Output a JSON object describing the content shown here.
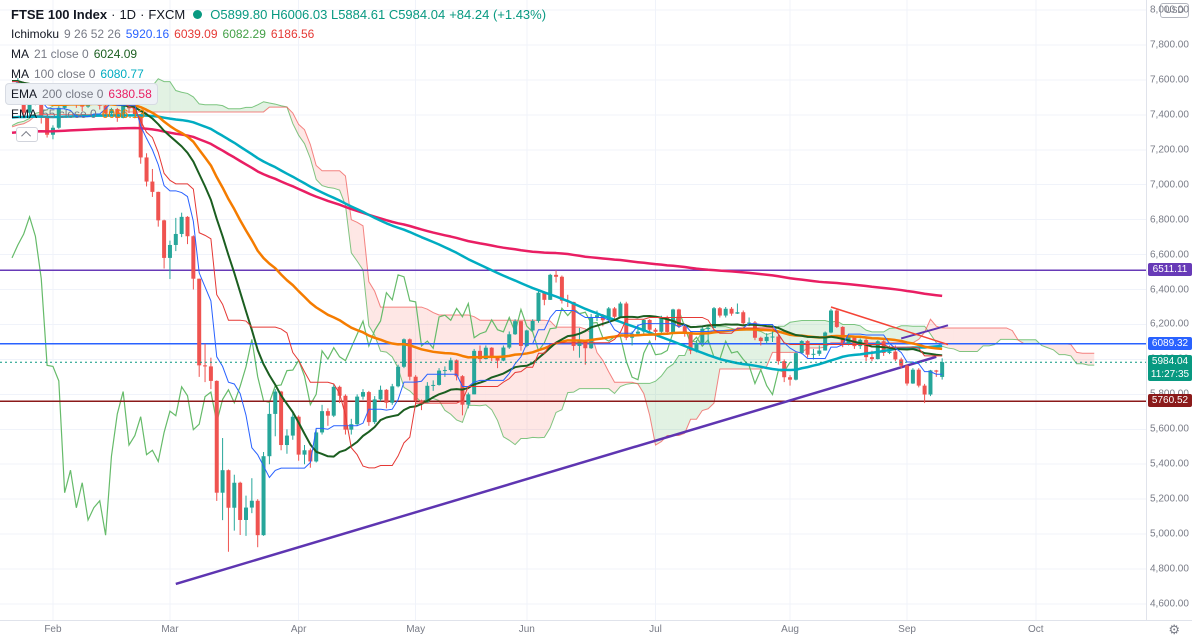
{
  "header": {
    "symbol": "FTSE 100 Index",
    "sep": "·",
    "interval": "1D",
    "exchange": "FXCM",
    "ohlc": [
      {
        "l": "O",
        "v": "5899.80"
      },
      {
        "l": "H",
        "v": "6006.03"
      },
      {
        "l": "L",
        "v": "5884.61"
      },
      {
        "l": "C",
        "v": "5984.04"
      }
    ],
    "change": "+84.24 (+1.43%)",
    "ohlc_color": "#089981",
    "indicators": [
      {
        "id": "ichimoku",
        "name": "Ichimoku",
        "params": "9 26 52 26",
        "selected": false,
        "values": [
          {
            "t": "5920.16",
            "c": "#2962ff"
          },
          {
            "t": "6039.09",
            "c": "#e53935"
          },
          {
            "t": "6082.29",
            "c": "#43a047"
          },
          {
            "t": "6186.56",
            "c": "#e53935"
          }
        ]
      },
      {
        "id": "ma-21",
        "name": "MA",
        "params": "21 close 0",
        "selected": false,
        "values": [
          {
            "t": "6024.09",
            "c": "#1b5e20"
          }
        ]
      },
      {
        "id": "ma-100",
        "name": "MA",
        "params": "100 close 0",
        "selected": false,
        "values": [
          {
            "t": "6080.77",
            "c": "#00acc1"
          }
        ]
      },
      {
        "id": "ema-200",
        "name": "EMA",
        "params": "200 close 0",
        "selected": true,
        "values": [
          {
            "t": "6380.58",
            "c": "#e91e63"
          }
        ]
      },
      {
        "id": "ema-55",
        "name": "EMA",
        "params": "55 close 0",
        "selected": false,
        "values": [
          {
            "t": "6066.13",
            "c": "#f57c00"
          }
        ]
      }
    ]
  },
  "axis": {
    "currency": "USD"
  },
  "icons": {
    "gear": "⚙"
  },
  "chart_data": {
    "type": "candlestick",
    "title": "FTSE 100 Index",
    "interval": "1D",
    "source": "FXCM",
    "price_axis": {
      "min": 4600,
      "max": 8000,
      "step": 200
    },
    "months": [
      {
        "label": "Feb",
        "i": 7
      },
      {
        "label": "Mar",
        "i": 27
      },
      {
        "label": "Apr",
        "i": 49
      },
      {
        "label": "May",
        "i": 69
      },
      {
        "label": "Jun",
        "i": 88
      },
      {
        "label": "Jul",
        "i": 110
      },
      {
        "label": "Aug",
        "i": 133
      },
      {
        "label": "Sep",
        "i": 153
      },
      {
        "label": "Oct",
        "i": 175
      }
    ],
    "levels": [
      {
        "value": 6511.11,
        "color": "#673ab7"
      },
      {
        "value": 6089.32,
        "color": "#2962ff"
      },
      {
        "value": 5760.52,
        "color": "#8b1a1a"
      }
    ],
    "last": {
      "price": 5984.04,
      "countdown": "11:27:35"
    },
    "trendlines": [
      {
        "i1": 28,
        "p1": 4715,
        "i2": 158,
        "p2": 6015,
        "color": "#5e35b1",
        "width": 2.5
      },
      {
        "i1": 152,
        "p1": 6120,
        "i2": 160,
        "p2": 6195,
        "color": "#5e35b1",
        "width": 2
      },
      {
        "i1": 140,
        "p1": 6300,
        "i2": 160,
        "p2": 6085,
        "color": "#f44336",
        "width": 1.5
      }
    ],
    "style": {
      "up": "#26a69a",
      "down": "#ef5350",
      "tenkan": "#2962ff",
      "kijun": "#e53935",
      "senkouA": "#4caf50",
      "senkouB": "#ef5350",
      "cloudUp": "rgba(76,175,80,0.16)",
      "cloudDown": "rgba(244,67,54,0.13)",
      "chikou": "#66bb6a",
      "ma21": "#1b5e20",
      "ma100": "#00acc1",
      "ema55": "#f57c00",
      "ema200": "#e91e63",
      "grid": "#f0f3fa"
    },
    "seed_closes": [
      7155,
      7143,
      7197,
      7178,
      7158,
      7212,
      7186,
      7167,
      7213,
      7247,
      7211,
      7181,
      7204,
      7260,
      7235,
      7213,
      7248,
      7306,
      7331,
      7324,
      7295,
      7328,
      7369,
      7388,
      7403,
      7396,
      7406,
      7359,
      7329,
      7365,
      7292,
      7316,
      7262,
      7303,
      7328,
      7351,
      7326,
      7307,
      7356,
      7403,
      7416,
      7429,
      7286,
      7188,
      7158,
      7239,
      7240,
      7233,
      7213,
      7216,
      7273,
      7353,
      7519,
      7525,
      7540,
      7574,
      7632,
      7645,
      7587,
      7622,
      7604,
      7542,
      7574,
      7604,
      7598,
      7573,
      7588,
      7617,
      7610,
      7587,
      7622,
      7675,
      7651,
      7612,
      7571,
      7585,
      7558,
      7572
    ],
    "candles": [
      [
        7572,
        7580,
        7480,
        7508
      ],
      [
        7508,
        7610,
        7500,
        7586
      ],
      [
        7586,
        7590,
        7390,
        7412
      ],
      [
        7412,
        7490,
        7390,
        7481
      ],
      [
        7481,
        7510,
        7455,
        7483
      ],
      [
        7483,
        7490,
        7350,
        7382
      ],
      [
        7382,
        7400,
        7270,
        7286
      ],
      [
        7286,
        7340,
        7260,
        7326
      ],
      [
        7326,
        7450,
        7320,
        7440
      ],
      [
        7440,
        7500,
        7430,
        7482
      ],
      [
        7482,
        7520,
        7460,
        7505
      ],
      [
        7505,
        7510,
        7440,
        7467
      ],
      [
        7467,
        7480,
        7420,
        7447
      ],
      [
        7447,
        7510,
        7440,
        7499
      ],
      [
        7499,
        7550,
        7490,
        7534
      ],
      [
        7534,
        7540,
        7430,
        7452
      ],
      [
        7452,
        7470,
        7390,
        7409
      ],
      [
        7409,
        7440,
        7400,
        7433
      ],
      [
        7433,
        7440,
        7360,
        7382
      ],
      [
        7382,
        7460,
        7380,
        7457
      ],
      [
        7457,
        7470,
        7410,
        7437
      ],
      [
        7437,
        7450,
        7380,
        7404
      ],
      [
        7404,
        7404,
        7120,
        7156
      ],
      [
        7156,
        7180,
        6990,
        7018
      ],
      [
        7018,
        7090,
        6930,
        6959
      ],
      [
        6959,
        6960,
        6760,
        6796
      ],
      [
        6796,
        6800,
        6520,
        6581
      ],
      [
        6581,
        6680,
        6460,
        6655
      ],
      [
        6655,
        6810,
        6620,
        6718
      ],
      [
        6718,
        6840,
        6700,
        6816
      ],
      [
        6816,
        6820,
        6660,
        6705
      ],
      [
        6705,
        6710,
        6400,
        6462
      ],
      [
        6462,
        6462,
        5900,
        5966
      ],
      [
        5966,
        6090,
        5870,
        5960
      ],
      [
        5960,
        6010,
        5830,
        5877
      ],
      [
        5877,
        5880,
        5190,
        5237
      ],
      [
        5237,
        5550,
        5080,
        5366
      ],
      [
        5366,
        5370,
        4899,
        5151
      ],
      [
        5151,
        5340,
        5020,
        5294
      ],
      [
        5294,
        5300,
        4995,
        5081
      ],
      [
        5081,
        5220,
        4990,
        5152
      ],
      [
        5152,
        5320,
        5120,
        5191
      ],
      [
        5191,
        5200,
        4925,
        4994
      ],
      [
        4994,
        5470,
        4990,
        5446
      ],
      [
        5446,
        5750,
        5400,
        5688
      ],
      [
        5688,
        5830,
        5560,
        5816
      ],
      [
        5816,
        5820,
        5480,
        5510
      ],
      [
        5510,
        5600,
        5460,
        5564
      ],
      [
        5564,
        5700,
        5540,
        5672
      ],
      [
        5672,
        5680,
        5420,
        5455
      ],
      [
        5455,
        5510,
        5400,
        5480
      ],
      [
        5480,
        5490,
        5380,
        5416
      ],
      [
        5416,
        5600,
        5410,
        5582
      ],
      [
        5582,
        5740,
        5570,
        5704
      ],
      [
        5704,
        5720,
        5620,
        5678
      ],
      [
        5678,
        5860,
        5670,
        5843
      ],
      [
        5843,
        5850,
        5750,
        5792
      ],
      [
        5792,
        5800,
        5570,
        5598
      ],
      [
        5598,
        5660,
        5570,
        5629
      ],
      [
        5629,
        5800,
        5620,
        5787
      ],
      [
        5787,
        5830,
        5770,
        5813
      ],
      [
        5813,
        5820,
        5620,
        5641
      ],
      [
        5641,
        5790,
        5630,
        5771
      ],
      [
        5771,
        5850,
        5760,
        5826
      ],
      [
        5826,
        5830,
        5720,
        5752
      ],
      [
        5752,
        5860,
        5740,
        5846
      ],
      [
        5846,
        5970,
        5840,
        5958
      ],
      [
        5958,
        6120,
        5950,
        6115
      ],
      [
        6115,
        6120,
        5880,
        5901
      ],
      [
        5901,
        5910,
        5740,
        5763
      ],
      [
        5763,
        5770,
        5710,
        5754
      ],
      [
        5754,
        5870,
        5750,
        5849
      ],
      [
        5849,
        5880,
        5820,
        5854
      ],
      [
        5854,
        5950,
        5850,
        5936
      ],
      [
        5936,
        5960,
        5900,
        5939
      ],
      [
        5939,
        6010,
        5930,
        5995
      ],
      [
        5995,
        6000,
        5880,
        5904
      ],
      [
        5904,
        5910,
        5680,
        5741
      ],
      [
        5741,
        5810,
        5720,
        5800
      ],
      [
        5800,
        6060,
        5800,
        6049
      ],
      [
        6049,
        6080,
        5980,
        6002
      ],
      [
        6002,
        6080,
        6000,
        6067
      ],
      [
        6067,
        6070,
        5990,
        6015
      ],
      [
        6015,
        6020,
        5950,
        5993
      ],
      [
        5993,
        6080,
        5990,
        6068
      ],
      [
        6068,
        6160,
        6060,
        6144
      ],
      [
        6144,
        6230,
        6140,
        6219
      ],
      [
        6219,
        6220,
        6050,
        6077
      ],
      [
        6077,
        6170,
        6070,
        6166
      ],
      [
        6166,
        6230,
        6160,
        6220
      ],
      [
        6220,
        6390,
        6210,
        6382
      ],
      [
        6382,
        6390,
        6310,
        6341
      ],
      [
        6341,
        6490,
        6340,
        6484
      ],
      [
        6484,
        6510,
        6440,
        6473
      ],
      [
        6473,
        6480,
        6320,
        6336
      ],
      [
        6336,
        6370,
        6300,
        6329
      ],
      [
        6329,
        6330,
        6050,
        6077
      ],
      [
        6077,
        6180,
        6010,
        6105
      ],
      [
        6105,
        6110,
        5970,
        6064
      ],
      [
        6064,
        6260,
        6060,
        6243
      ],
      [
        6243,
        6280,
        6220,
        6253
      ],
      [
        6253,
        6260,
        6190,
        6224
      ],
      [
        6224,
        6300,
        6220,
        6292
      ],
      [
        6292,
        6300,
        6220,
        6244
      ],
      [
        6244,
        6330,
        6240,
        6320
      ],
      [
        6320,
        6330,
        6110,
        6124
      ],
      [
        6124,
        6160,
        6080,
        6147
      ],
      [
        6147,
        6200,
        6140,
        6159
      ],
      [
        6159,
        6230,
        6140,
        6226
      ],
      [
        6226,
        6230,
        6140,
        6170
      ],
      [
        6170,
        6180,
        6110,
        6158
      ],
      [
        6158,
        6250,
        6150,
        6240
      ],
      [
        6240,
        6250,
        6140,
        6157
      ],
      [
        6157,
        6290,
        6150,
        6286
      ],
      [
        6286,
        6290,
        6180,
        6190
      ],
      [
        6190,
        6200,
        6130,
        6157
      ],
      [
        6157,
        6160,
        6030,
        6050
      ],
      [
        6050,
        6110,
        6040,
        6095
      ],
      [
        6095,
        6190,
        6090,
        6176
      ],
      [
        6176,
        6190,
        6090,
        6180
      ],
      [
        6180,
        6300,
        6180,
        6293
      ],
      [
        6293,
        6300,
        6240,
        6251
      ],
      [
        6251,
        6300,
        6240,
        6290
      ],
      [
        6290,
        6300,
        6250,
        6262
      ],
      [
        6262,
        6320,
        6260,
        6270
      ],
      [
        6270,
        6280,
        6190,
        6207
      ],
      [
        6207,
        6240,
        6190,
        6211
      ],
      [
        6211,
        6220,
        6110,
        6124
      ],
      [
        6124,
        6130,
        6080,
        6105
      ],
      [
        6105,
        6150,
        6090,
        6129
      ],
      [
        6129,
        6160,
        6100,
        6131
      ],
      [
        6131,
        6140,
        5970,
        5990
      ],
      [
        5990,
        6000,
        5870,
        5898
      ],
      [
        5898,
        5910,
        5850,
        5884
      ],
      [
        5884,
        6040,
        5880,
        6036
      ],
      [
        6036,
        6110,
        6030,
        6105
      ],
      [
        6105,
        6110,
        6010,
        6027
      ],
      [
        6027,
        6060,
        6000,
        6032
      ],
      [
        6032,
        6080,
        6020,
        6051
      ],
      [
        6051,
        6160,
        6050,
        6154
      ],
      [
        6154,
        6290,
        6150,
        6280
      ],
      [
        6280,
        6290,
        6180,
        6186
      ],
      [
        6186,
        6190,
        6070,
        6090
      ],
      [
        6090,
        6140,
        6080,
        6127
      ],
      [
        6127,
        6130,
        6060,
        6076
      ],
      [
        6076,
        6120,
        6060,
        6112
      ],
      [
        6112,
        6120,
        5990,
        6013
      ],
      [
        6013,
        6050,
        5990,
        6002
      ],
      [
        6002,
        6110,
        6000,
        6104
      ],
      [
        6104,
        6110,
        6020,
        6037
      ],
      [
        6037,
        6080,
        6030,
        6045
      ],
      [
        6045,
        6080,
        5990,
        6000
      ],
      [
        6000,
        6010,
        5950,
        5964
      ],
      [
        5964,
        5970,
        5850,
        5862
      ],
      [
        5862,
        5950,
        5860,
        5941
      ],
      [
        5941,
        5950,
        5840,
        5850
      ],
      [
        5850,
        5860,
        5750,
        5799
      ],
      [
        5799,
        5940,
        5790,
        5937
      ],
      [
        5937,
        5940,
        5900,
        5930
      ],
      [
        5899.8,
        6006.03,
        5884.61,
        5984.04
      ]
    ]
  }
}
